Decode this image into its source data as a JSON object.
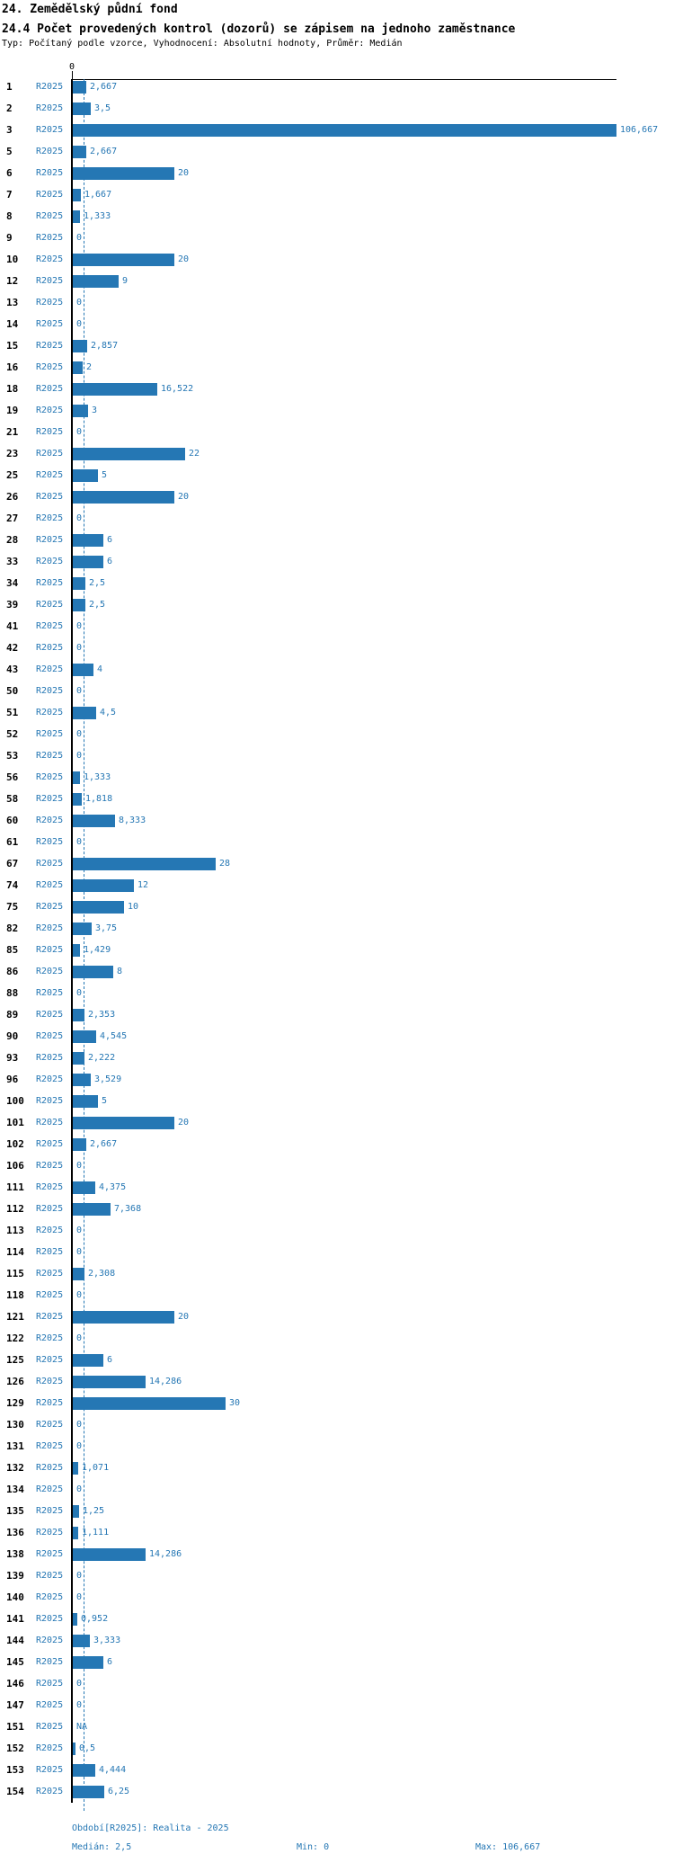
{
  "header": {
    "chapter": "24. Zemědělský půdní fond",
    "indicator": "24.4 Počet provedených kontrol (dozorů) se zápisem na jednoho zaměstnance",
    "meta": "Typ: Počítaný podle vzorce, Vyhodnocení: Absolutní hodnoty, Průměr: Medián"
  },
  "chart_data": {
    "type": "bar",
    "orientation": "horizontal",
    "series_label": "R2025",
    "zero_tick": "0",
    "xlim": [
      0,
      106.667
    ],
    "median_value": 2.5,
    "grid": false,
    "colors": {
      "bar": "#2577b4",
      "blue_text": "#2577b4",
      "axis": "#000000"
    },
    "rows": [
      {
        "id": "1",
        "value": 2.667,
        "display": "2,667"
      },
      {
        "id": "2",
        "value": 3.5,
        "display": "3,5"
      },
      {
        "id": "3",
        "value": 106.667,
        "display": "106,667"
      },
      {
        "id": "5",
        "value": 2.667,
        "display": "2,667"
      },
      {
        "id": "6",
        "value": 20,
        "display": "20"
      },
      {
        "id": "7",
        "value": 1.667,
        "display": "1,667"
      },
      {
        "id": "8",
        "value": 1.333,
        "display": "1,333"
      },
      {
        "id": "9",
        "value": 0,
        "display": "0"
      },
      {
        "id": "10",
        "value": 20,
        "display": "20"
      },
      {
        "id": "12",
        "value": 9,
        "display": "9"
      },
      {
        "id": "13",
        "value": 0,
        "display": "0"
      },
      {
        "id": "14",
        "value": 0,
        "display": "0"
      },
      {
        "id": "15",
        "value": 2.857,
        "display": "2,857"
      },
      {
        "id": "16",
        "value": 2,
        "display": "2"
      },
      {
        "id": "18",
        "value": 16.522,
        "display": "16,522"
      },
      {
        "id": "19",
        "value": 3,
        "display": "3"
      },
      {
        "id": "21",
        "value": 0,
        "display": "0"
      },
      {
        "id": "23",
        "value": 22,
        "display": "22"
      },
      {
        "id": "25",
        "value": 5,
        "display": "5"
      },
      {
        "id": "26",
        "value": 20,
        "display": "20"
      },
      {
        "id": "27",
        "value": 0,
        "display": "0"
      },
      {
        "id": "28",
        "value": 6,
        "display": "6"
      },
      {
        "id": "33",
        "value": 6,
        "display": "6"
      },
      {
        "id": "34",
        "value": 2.5,
        "display": "2,5"
      },
      {
        "id": "39",
        "value": 2.5,
        "display": "2,5"
      },
      {
        "id": "41",
        "value": 0,
        "display": "0"
      },
      {
        "id": "42",
        "value": 0,
        "display": "0"
      },
      {
        "id": "43",
        "value": 4,
        "display": "4"
      },
      {
        "id": "50",
        "value": 0,
        "display": "0"
      },
      {
        "id": "51",
        "value": 4.5,
        "display": "4,5"
      },
      {
        "id": "52",
        "value": 0,
        "display": "0"
      },
      {
        "id": "53",
        "value": 0,
        "display": "0"
      },
      {
        "id": "56",
        "value": 1.333,
        "display": "1,333"
      },
      {
        "id": "58",
        "value": 1.818,
        "display": "1,818"
      },
      {
        "id": "60",
        "value": 8.333,
        "display": "8,333"
      },
      {
        "id": "61",
        "value": 0,
        "display": "0"
      },
      {
        "id": "67",
        "value": 28,
        "display": "28"
      },
      {
        "id": "74",
        "value": 12,
        "display": "12"
      },
      {
        "id": "75",
        "value": 10,
        "display": "10"
      },
      {
        "id": "82",
        "value": 3.75,
        "display": "3,75"
      },
      {
        "id": "85",
        "value": 1.429,
        "display": "1,429"
      },
      {
        "id": "86",
        "value": 8,
        "display": "8"
      },
      {
        "id": "88",
        "value": 0,
        "display": "0"
      },
      {
        "id": "89",
        "value": 2.353,
        "display": "2,353"
      },
      {
        "id": "90",
        "value": 4.545,
        "display": "4,545"
      },
      {
        "id": "93",
        "value": 2.222,
        "display": "2,222"
      },
      {
        "id": "96",
        "value": 3.529,
        "display": "3,529"
      },
      {
        "id": "100",
        "value": 5,
        "display": "5"
      },
      {
        "id": "101",
        "value": 20,
        "display": "20"
      },
      {
        "id": "102",
        "value": 2.667,
        "display": "2,667"
      },
      {
        "id": "106",
        "value": 0,
        "display": "0"
      },
      {
        "id": "111",
        "value": 4.375,
        "display": "4,375"
      },
      {
        "id": "112",
        "value": 7.368,
        "display": "7,368"
      },
      {
        "id": "113",
        "value": 0,
        "display": "0"
      },
      {
        "id": "114",
        "value": 0,
        "display": "0"
      },
      {
        "id": "115",
        "value": 2.308,
        "display": "2,308"
      },
      {
        "id": "118",
        "value": 0,
        "display": "0"
      },
      {
        "id": "121",
        "value": 20,
        "display": "20"
      },
      {
        "id": "122",
        "value": 0,
        "display": "0"
      },
      {
        "id": "125",
        "value": 6,
        "display": "6"
      },
      {
        "id": "126",
        "value": 14.286,
        "display": "14,286"
      },
      {
        "id": "129",
        "value": 30,
        "display": "30"
      },
      {
        "id": "130",
        "value": 0,
        "display": "0"
      },
      {
        "id": "131",
        "value": 0,
        "display": "0"
      },
      {
        "id": "132",
        "value": 1.071,
        "display": "1,071"
      },
      {
        "id": "134",
        "value": 0,
        "display": "0"
      },
      {
        "id": "135",
        "value": 1.25,
        "display": "1,25"
      },
      {
        "id": "136",
        "value": 1.111,
        "display": "1,111"
      },
      {
        "id": "138",
        "value": 14.286,
        "display": "14,286"
      },
      {
        "id": "139",
        "value": 0,
        "display": "0"
      },
      {
        "id": "140",
        "value": 0,
        "display": "0"
      },
      {
        "id": "141",
        "value": 0.952,
        "display": "0,952"
      },
      {
        "id": "144",
        "value": 3.333,
        "display": "3,333"
      },
      {
        "id": "145",
        "value": 6,
        "display": "6"
      },
      {
        "id": "146",
        "value": 0,
        "display": "0"
      },
      {
        "id": "147",
        "value": 0,
        "display": "0"
      },
      {
        "id": "151",
        "value": null,
        "display": "NA"
      },
      {
        "id": "152",
        "value": 0.5,
        "display": "0,5"
      },
      {
        "id": "153",
        "value": 4.444,
        "display": "4,444"
      },
      {
        "id": "154",
        "value": 6.25,
        "display": "6,25"
      }
    ]
  },
  "footer": {
    "period": "Období[R2025]: Realita - 2025",
    "median": "Medián: 2,5",
    "min": "Min: 0",
    "max": "Max: 106,667"
  }
}
